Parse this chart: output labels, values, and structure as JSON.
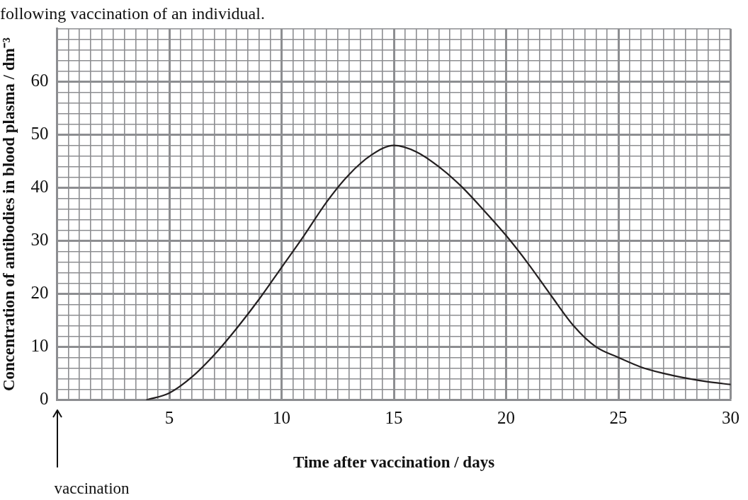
{
  "chart_data": {
    "type": "line",
    "subtitle": "following vaccination of an individual.",
    "xlabel": "Time after vaccination / days",
    "ylabel": "Concentration of antibodies in blood plasma / dm⁻³",
    "annotations": [
      "vaccination"
    ],
    "series": [
      {
        "color": "#231f20",
        "x": [
          4,
          5,
          6,
          7,
          8,
          9,
          10,
          11,
          12,
          13,
          14,
          15,
          16,
          17,
          18,
          19,
          20,
          21,
          22,
          23,
          24,
          25,
          26,
          27,
          28,
          29,
          30
        ],
        "values": [
          0,
          1.3,
          4.3,
          8.5,
          13.5,
          19,
          25,
          31,
          37.3,
          42.5,
          46.2,
          48,
          46.8,
          44,
          40.3,
          35.8,
          31,
          25.6,
          19.7,
          14,
          10,
          8,
          6.2,
          5,
          4.1,
          3.4,
          2.9
        ]
      }
    ],
    "xlim": [
      0,
      30
    ],
    "ylim": [
      0,
      70
    ],
    "xticks": [
      {
        "value": 0,
        "label": null
      },
      {
        "value": 0.5,
        "label": null
      },
      {
        "value": 1,
        "label": null
      },
      {
        "value": 1.5,
        "label": null
      },
      {
        "value": 2,
        "label": null
      },
      {
        "value": 2.5,
        "label": null
      },
      {
        "value": 3,
        "label": null
      },
      {
        "value": 3.5,
        "label": null
      },
      {
        "value": 4,
        "label": null
      },
      {
        "value": 4.5,
        "label": null
      },
      5,
      {
        "value": 5.5,
        "label": null
      },
      {
        "value": 6,
        "label": null
      },
      {
        "value": 6.5,
        "label": null
      },
      {
        "value": 7,
        "label": null
      },
      {
        "value": 7.5,
        "label": null
      },
      {
        "value": 8,
        "label": null
      },
      {
        "value": 8.5,
        "label": null
      },
      {
        "value": 9,
        "label": null
      },
      {
        "value": 9.5,
        "label": null
      },
      10,
      {
        "value": 10.5,
        "label": null
      },
      {
        "value": 11,
        "label": null
      },
      {
        "value": 11.5,
        "label": null
      },
      {
        "value": 12,
        "label": null
      },
      {
        "value": 12.5,
        "label": null
      },
      {
        "value": 13,
        "label": null
      },
      {
        "value": 13.5,
        "label": null
      },
      {
        "value": 14,
        "label": null
      },
      {
        "value": 14.5,
        "label": null
      },
      15,
      {
        "value": 15.5,
        "label": null
      },
      {
        "value": 16,
        "label": null
      },
      {
        "value": 16.5,
        "label": null
      },
      {
        "value": 17,
        "label": null
      },
      {
        "value": 17.5,
        "label": null
      },
      {
        "value": 18,
        "label": null
      },
      {
        "value": 18.5,
        "label": null
      },
      {
        "value": 19,
        "label": null
      },
      {
        "value": 19.5,
        "label": null
      },
      20,
      {
        "value": 20.5,
        "label": null
      },
      {
        "value": 21,
        "label": null
      },
      {
        "value": 21.5,
        "label": null
      },
      {
        "value": 22,
        "label": null
      },
      {
        "value": 22.5,
        "label": null
      },
      {
        "value": 23,
        "label": null
      },
      {
        "value": 23.5,
        "label": null
      },
      {
        "value": 24,
        "label": null
      },
      {
        "value": 24.5,
        "label": null
      },
      25,
      {
        "value": 25.5,
        "label": null
      },
      {
        "value": 26,
        "label": null
      },
      {
        "value": 26.5,
        "label": null
      },
      {
        "value": 27,
        "label": null
      },
      {
        "value": 27.5,
        "label": null
      },
      {
        "value": 28,
        "label": null
      },
      {
        "value": 28.5,
        "label": null
      },
      {
        "value": 29,
        "label": null
      },
      {
        "value": 29.5,
        "label": null
      },
      30
    ],
    "yticks": [
      0,
      {
        "value": 2,
        "label": null
      },
      {
        "value": 4,
        "label": null
      },
      {
        "value": 6,
        "label": null
      },
      {
        "value": 8,
        "label": null
      },
      10,
      {
        "value": 12,
        "label": null
      },
      {
        "value": 14,
        "label": null
      },
      {
        "value": 16,
        "label": null
      },
      {
        "value": 18,
        "label": null
      },
      20,
      {
        "value": 22,
        "label": null
      },
      {
        "value": 24,
        "label": null
      },
      {
        "value": 26,
        "label": null
      },
      {
        "value": 28,
        "label": null
      },
      30,
      {
        "value": 32,
        "label": null
      },
      {
        "value": 34,
        "label": null
      },
      {
        "value": 36,
        "label": null
      },
      {
        "value": 38,
        "label": null
      },
      40,
      {
        "value": 42,
        "label": null
      },
      {
        "value": 44,
        "label": null
      },
      {
        "value": 46,
        "label": null
      },
      {
        "value": 48,
        "label": null
      },
      50,
      {
        "value": 52,
        "label": null
      },
      {
        "value": 54,
        "label": null
      },
      {
        "value": 56,
        "label": null
      },
      {
        "value": 58,
        "label": null
      },
      60,
      {
        "value": 62,
        "label": null
      },
      {
        "value": 64,
        "label": null
      },
      {
        "value": 66,
        "label": null
      },
      {
        "value": 68,
        "label": null
      },
      {
        "value": 70,
        "label": null
      }
    ],
    "grid": true,
    "legend": false,
    "marker": "none",
    "line_style": "solid"
  }
}
